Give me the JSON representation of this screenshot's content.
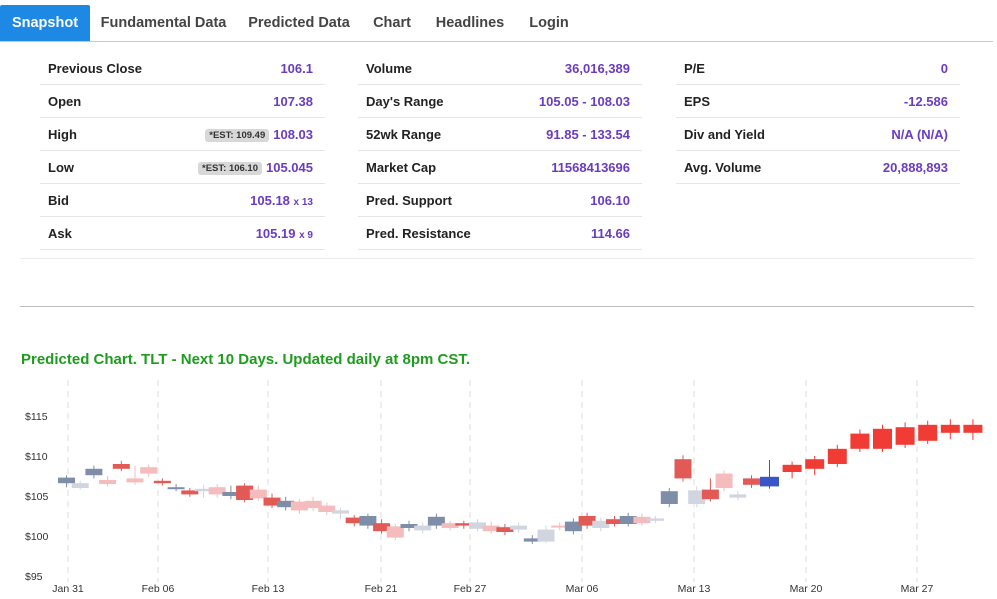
{
  "tabs": [
    {
      "label": "Snapshot",
      "active": true
    },
    {
      "label": "Fundamental Data",
      "active": false
    },
    {
      "label": "Predicted Data",
      "active": false
    },
    {
      "label": "Chart",
      "active": false
    },
    {
      "label": "Headlines",
      "active": false
    },
    {
      "label": "Login",
      "active": false
    }
  ],
  "quote": {
    "col1": [
      {
        "label": "Previous Close",
        "value": "106.1"
      },
      {
        "label": "Open",
        "value": "107.38"
      },
      {
        "label": "High",
        "badge": "*EST: 109.49",
        "value": "108.03"
      },
      {
        "label": "Low",
        "badge": "*EST: 106.10",
        "value": "105.045"
      },
      {
        "label": "Bid",
        "value": "105.18",
        "size": "x 13"
      },
      {
        "label": "Ask",
        "value": "105.19",
        "size": "x 9"
      }
    ],
    "col2": [
      {
        "label": "Volume",
        "value": "36,016,389"
      },
      {
        "label": "Day's Range",
        "value": "105.05 - 108.03"
      },
      {
        "label": "52wk Range",
        "value": "91.85 - 133.54"
      },
      {
        "label": "Market Cap",
        "value": "11568413696"
      },
      {
        "label": "Pred. Support",
        "value": "106.10"
      },
      {
        "label": "Pred. Resistance",
        "value": "114.66"
      }
    ],
    "col3": [
      {
        "label": "P/E",
        "value": "0"
      },
      {
        "label": "EPS",
        "value": "-12.586"
      },
      {
        "label": "Div and Yield",
        "value": "N/A (N/A)"
      },
      {
        "label": "Avg. Volume",
        "value": "20,888,893"
      }
    ]
  },
  "chart_title": "Predicted Chart. TLT - Next 10 Days. Updated daily at 8pm CST.",
  "colors": {
    "accent": "#1e88e5",
    "value_purple": "#6a3cc2",
    "title_green": "#1e9c1e",
    "up_strong": "#7f8ea8",
    "up_light": "#d0d5df",
    "down_strong": "#e15a55",
    "down_light": "#f4bcbc",
    "pred_up": "#f03c35",
    "pred_blue": "#3a55c8"
  },
  "chart_data": {
    "type": "candlestick",
    "y_ticks": [
      "$95",
      "$100",
      "$105",
      "$110",
      "$115"
    ],
    "y_tick_values": [
      95,
      100,
      105,
      110,
      115
    ],
    "ylim": [
      95,
      117.5
    ],
    "x_ticks": [
      "Jan 31",
      "Feb 06",
      "Feb 13",
      "Feb 21",
      "Feb 27",
      "Mar 06",
      "Mar 13",
      "Mar 20",
      "Mar 27"
    ],
    "x_tick_index": [
      0,
      4,
      9,
      14,
      18,
      23,
      28,
      33,
      38
    ],
    "candles": [
      {
        "o": 106.6,
        "c": 107.3,
        "h": 107.6,
        "l": 106.1,
        "kind": "up_strong"
      },
      {
        "o": 106.6,
        "c": 106.0,
        "h": 106.9,
        "l": 105.8,
        "kind": "up_light"
      },
      {
        "o": 107.6,
        "c": 108.4,
        "h": 108.8,
        "l": 107.2,
        "kind": "up_strong"
      },
      {
        "o": 107.0,
        "c": 106.5,
        "h": 107.5,
        "l": 106.2,
        "kind": "down_light"
      },
      {
        "o": 109.0,
        "c": 108.4,
        "h": 109.4,
        "l": 108.1,
        "kind": "down_strong"
      },
      {
        "o": 107.2,
        "c": 106.7,
        "h": 108.8,
        "l": 106.4,
        "kind": "down_light"
      },
      {
        "o": 108.6,
        "c": 107.8,
        "h": 108.9,
        "l": 107.4,
        "kind": "down_light"
      },
      {
        "o": 106.9,
        "c": 106.6,
        "h": 107.2,
        "l": 106.3,
        "kind": "down_strong"
      },
      {
        "o": 105.9,
        "c": 106.1,
        "h": 106.5,
        "l": 105.6,
        "kind": "up_strong"
      },
      {
        "o": 105.7,
        "c": 105.2,
        "h": 106.0,
        "l": 104.9,
        "kind": "down_strong"
      },
      {
        "o": 105.6,
        "c": 105.9,
        "h": 106.4,
        "l": 104.8,
        "kind": "up_light"
      },
      {
        "o": 106.1,
        "c": 105.2,
        "h": 106.5,
        "l": 104.8,
        "kind": "down_light"
      },
      {
        "o": 105.0,
        "c": 105.5,
        "h": 106.3,
        "l": 104.6,
        "kind": "up_strong"
      },
      {
        "o": 106.3,
        "c": 104.5,
        "h": 106.6,
        "l": 104.2,
        "kind": "down_strong"
      },
      {
        "o": 105.8,
        "c": 104.7,
        "h": 106.3,
        "l": 104.4,
        "kind": "down_light"
      },
      {
        "o": 104.8,
        "c": 103.8,
        "h": 105.3,
        "l": 103.5,
        "kind": "down_strong"
      },
      {
        "o": 103.6,
        "c": 104.4,
        "h": 104.9,
        "l": 103.2,
        "kind": "up_strong"
      },
      {
        "o": 104.3,
        "c": 103.2,
        "h": 104.6,
        "l": 102.8,
        "kind": "down_light"
      },
      {
        "o": 104.4,
        "c": 103.5,
        "h": 104.9,
        "l": 103.1,
        "kind": "down_light"
      },
      {
        "o": 103.8,
        "c": 103.0,
        "h": 104.2,
        "l": 102.6,
        "kind": "down_light"
      },
      {
        "o": 102.8,
        "c": 103.2,
        "h": 103.5,
        "l": 102.1,
        "kind": "up_light"
      },
      {
        "o": 102.3,
        "c": 101.6,
        "h": 102.6,
        "l": 101.2,
        "kind": "down_strong"
      },
      {
        "o": 101.3,
        "c": 102.5,
        "h": 102.8,
        "l": 100.9,
        "kind": "up_strong"
      },
      {
        "o": 101.6,
        "c": 100.6,
        "h": 102.1,
        "l": 100.3,
        "kind": "down_strong"
      },
      {
        "o": 101.2,
        "c": 99.8,
        "h": 101.5,
        "l": 99.5,
        "kind": "down_light"
      },
      {
        "o": 101.0,
        "c": 101.5,
        "h": 101.9,
        "l": 100.6,
        "kind": "up_strong"
      },
      {
        "o": 100.7,
        "c": 101.3,
        "h": 101.7,
        "l": 100.3,
        "kind": "up_light"
      },
      {
        "o": 101.3,
        "c": 102.4,
        "h": 102.8,
        "l": 100.9,
        "kind": "up_strong"
      },
      {
        "o": 101.6,
        "c": 101.0,
        "h": 101.9,
        "l": 100.7,
        "kind": "down_light"
      },
      {
        "o": 101.6,
        "c": 101.3,
        "h": 101.9,
        "l": 100.9,
        "kind": "down_strong"
      },
      {
        "o": 100.9,
        "c": 101.7,
        "h": 102.1,
        "l": 100.6,
        "kind": "up_light"
      },
      {
        "o": 101.3,
        "c": 100.6,
        "h": 101.8,
        "l": 100.3,
        "kind": "down_light"
      },
      {
        "o": 101.1,
        "c": 100.5,
        "h": 101.5,
        "l": 100.1,
        "kind": "down_strong"
      },
      {
        "o": 100.8,
        "c": 101.3,
        "h": 101.7,
        "l": 100.4,
        "kind": "up_light"
      },
      {
        "o": 99.3,
        "c": 99.7,
        "h": 100.1,
        "l": 99.0,
        "kind": "up_strong"
      },
      {
        "o": 99.3,
        "c": 100.8,
        "h": 101.3,
        "l": 99.1,
        "kind": "up_light"
      },
      {
        "o": 101.1,
        "c": 101.3,
        "h": 101.7,
        "l": 100.7,
        "kind": "down_light"
      },
      {
        "o": 100.6,
        "c": 101.8,
        "h": 102.2,
        "l": 100.2,
        "kind": "up_strong"
      },
      {
        "o": 101.3,
        "c": 102.5,
        "h": 102.9,
        "l": 100.9,
        "kind": "down_strong"
      },
      {
        "o": 101.0,
        "c": 101.9,
        "h": 102.3,
        "l": 100.6,
        "kind": "up_light"
      },
      {
        "o": 101.5,
        "c": 102.1,
        "h": 102.5,
        "l": 101.2,
        "kind": "down_strong"
      },
      {
        "o": 101.5,
        "c": 102.5,
        "h": 102.9,
        "l": 101.2,
        "kind": "up_strong"
      },
      {
        "o": 101.6,
        "c": 102.4,
        "h": 102.8,
        "l": 101.3,
        "kind": "down_light"
      },
      {
        "o": 101.9,
        "c": 102.2,
        "h": 102.5,
        "l": 101.6,
        "kind": "up_light"
      },
      {
        "o": 104.0,
        "c": 105.6,
        "h": 106.0,
        "l": 103.6,
        "kind": "up_strong"
      },
      {
        "o": 107.2,
        "c": 109.6,
        "h": 110.1,
        "l": 106.8,
        "kind": "down_strong"
      },
      {
        "o": 104.0,
        "c": 105.7,
        "h": 106.2,
        "l": 103.6,
        "kind": "up_light"
      },
      {
        "o": 105.8,
        "c": 104.6,
        "h": 107.2,
        "l": 104.3,
        "kind": "down_strong"
      },
      {
        "o": 107.8,
        "c": 106.0,
        "h": 108.2,
        "l": 105.6,
        "kind": "down_light"
      },
      {
        "o": 104.8,
        "c": 105.2,
        "h": 105.6,
        "l": 104.5,
        "kind": "up_light"
      },
      {
        "o": 106.4,
        "c": 107.2,
        "h": 107.6,
        "l": 106.0,
        "kind": "down_strong"
      },
      {
        "o": 106.2,
        "c": 107.4,
        "h": 109.5,
        "l": 105.9,
        "kind": "pred_blue"
      },
      {
        "o": 108.0,
        "c": 108.9,
        "h": 109.3,
        "l": 107.2,
        "kind": "pred_up"
      },
      {
        "o": 108.4,
        "c": 109.6,
        "h": 110.0,
        "l": 107.6,
        "kind": "pred_up"
      },
      {
        "o": 109.0,
        "c": 110.9,
        "h": 111.4,
        "l": 108.6,
        "kind": "pred_up"
      },
      {
        "o": 110.9,
        "c": 112.8,
        "h": 113.3,
        "l": 110.5,
        "kind": "pred_up"
      },
      {
        "o": 110.9,
        "c": 113.4,
        "h": 113.9,
        "l": 110.5,
        "kind": "pred_up"
      },
      {
        "o": 111.4,
        "c": 113.6,
        "h": 114.2,
        "l": 111.0,
        "kind": "pred_up"
      },
      {
        "o": 111.9,
        "c": 113.9,
        "h": 114.4,
        "l": 111.5,
        "kind": "pred_up"
      },
      {
        "o": 112.9,
        "c": 113.9,
        "h": 114.6,
        "l": 112.1,
        "kind": "pred_up"
      },
      {
        "o": 112.9,
        "c": 113.9,
        "h": 114.6,
        "l": 112.0,
        "kind": "pred_up"
      }
    ]
  }
}
